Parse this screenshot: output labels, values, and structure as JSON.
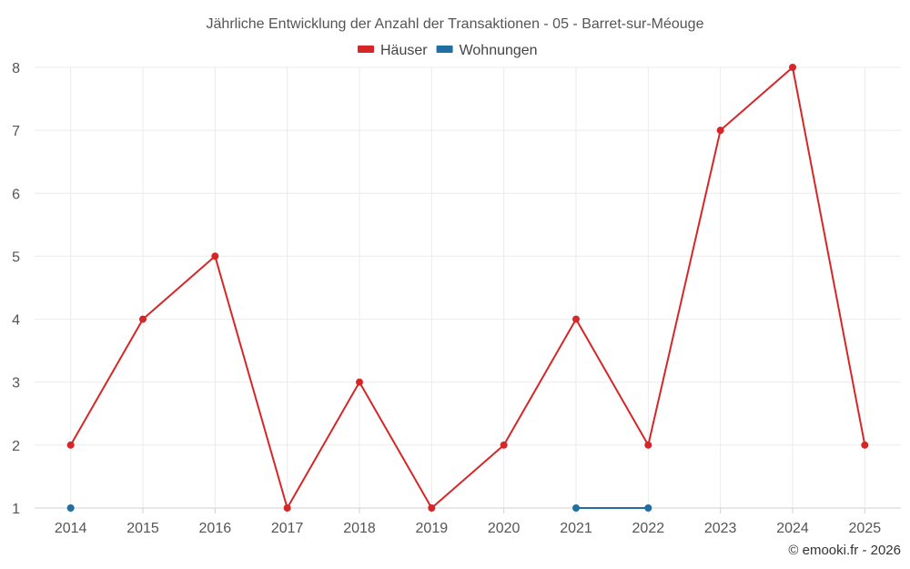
{
  "chart_data": {
    "type": "line",
    "title": "Jährliche Entwicklung der Anzahl der Transaktionen - 05 - Barret-sur-Méouge",
    "categories": [
      "2014",
      "2015",
      "2016",
      "2017",
      "2018",
      "2019",
      "2020",
      "2021",
      "2022",
      "2023",
      "2024",
      "2025"
    ],
    "ylim": [
      1,
      8
    ],
    "yticks": [
      1,
      2,
      3,
      4,
      5,
      6,
      7,
      8
    ],
    "grid": true,
    "legend_position": "top-center",
    "series": [
      {
        "name": "Häuser",
        "color": "#d62728",
        "values": [
          2,
          4,
          5,
          1,
          3,
          1,
          2,
          4,
          2,
          7,
          8,
          2
        ]
      },
      {
        "name": "Wohnungen",
        "color": "#1f6fa3",
        "values": [
          1,
          null,
          null,
          null,
          null,
          null,
          null,
          1,
          1,
          null,
          null,
          null
        ]
      }
    ]
  },
  "credit": "© emooki.fr - 2026"
}
